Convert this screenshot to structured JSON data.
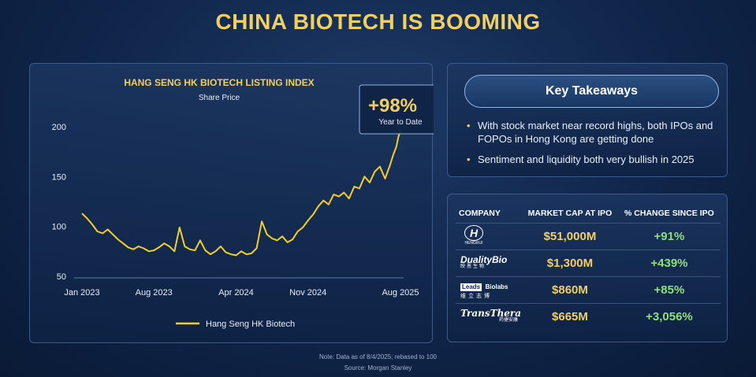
{
  "page_title": "CHINA BIOTECH IS BOOMING",
  "chart_data": {
    "type": "line",
    "title": "HANG SENG HK BIOTECH LISTING INDEX",
    "subtitle": "Share Price",
    "xlabel": "",
    "ylabel": "",
    "ylim": [
      50,
      200
    ],
    "yticks": [
      "50",
      "100",
      "150",
      "200"
    ],
    "xticks": [
      "Jan 2023",
      "Aug 2023",
      "Apr 2024",
      "Nov 2024",
      "Aug 2025"
    ],
    "xtick_positions": [
      0,
      7,
      15,
      22,
      31
    ],
    "x_range": [
      0,
      31
    ],
    "grid": false,
    "legend_position": "bottom-center",
    "callout": {
      "value": "+98%",
      "label": "Year to Date"
    },
    "series": [
      {
        "name": "Hang Seng HK Biotech",
        "color": "#f2cf2a",
        "x": [
          0,
          0.5,
          1,
          1.5,
          2,
          2.5,
          3,
          3.5,
          4,
          4.5,
          5,
          5.5,
          6,
          6.5,
          7,
          7.5,
          8,
          8.5,
          9,
          9.5,
          10,
          10.5,
          11,
          11.5,
          12,
          12.5,
          13,
          13.5,
          14,
          14.5,
          15,
          15.5,
          16,
          16.5,
          17,
          17.5,
          18,
          18.5,
          19,
          19.5,
          20,
          20.5,
          21,
          21.5,
          22,
          22.5,
          23,
          23.5,
          24,
          24.5,
          25,
          25.5,
          26,
          26.5,
          27,
          27.5,
          28,
          28.5,
          29,
          29.5,
          30,
          30.3,
          30.6,
          30.8,
          31
        ],
        "values": [
          113,
          108,
          102,
          95,
          93,
          97,
          92,
          87,
          83,
          79,
          77,
          80,
          78,
          75,
          76,
          79,
          83,
          80,
          75,
          99,
          80,
          77,
          76,
          86,
          76,
          72,
          75,
          80,
          74,
          72,
          71,
          75,
          72,
          73,
          78,
          105,
          92,
          88,
          86,
          90,
          84,
          87,
          95,
          99,
          106,
          112,
          120,
          126,
          122,
          132,
          130,
          134,
          128,
          140,
          138,
          150,
          144,
          155,
          160,
          148,
          162,
          172,
          180,
          190,
          196
        ]
      }
    ]
  },
  "takeaways": {
    "title": "Key Takeaways",
    "bullets": [
      "With stock market near record highs, both IPOs and FOPOs in Hong Kong are getting done",
      "Sentiment and liquidity both very bullish in 2025"
    ]
  },
  "ipo_table": {
    "headers": [
      "COMPANY",
      "MARKET CAP AT IPO",
      "% CHANGE SINCE IPO"
    ],
    "rows": [
      {
        "company_logo_text": "HENGRUI",
        "company_sub": "",
        "market_cap": "$51,000M",
        "change": "+91%"
      },
      {
        "company_logo_text": "DualityBio",
        "company_sub": "映恩生物",
        "market_cap": "$1,300M",
        "change": "+439%"
      },
      {
        "company_logo_text": "Leads",
        "company_logo_text_2": "Biolabs",
        "company_sub": "维立志博",
        "market_cap": "$860M",
        "change": "+85%"
      },
      {
        "company_logo_text": "TransThera",
        "company_sub": "药捷安康",
        "market_cap": "$665M",
        "change": "+3,056%"
      }
    ]
  },
  "footnote": "Note: Data as of 8/4/2025; rebased to 100",
  "source": "Source: Morgan Stanley"
}
